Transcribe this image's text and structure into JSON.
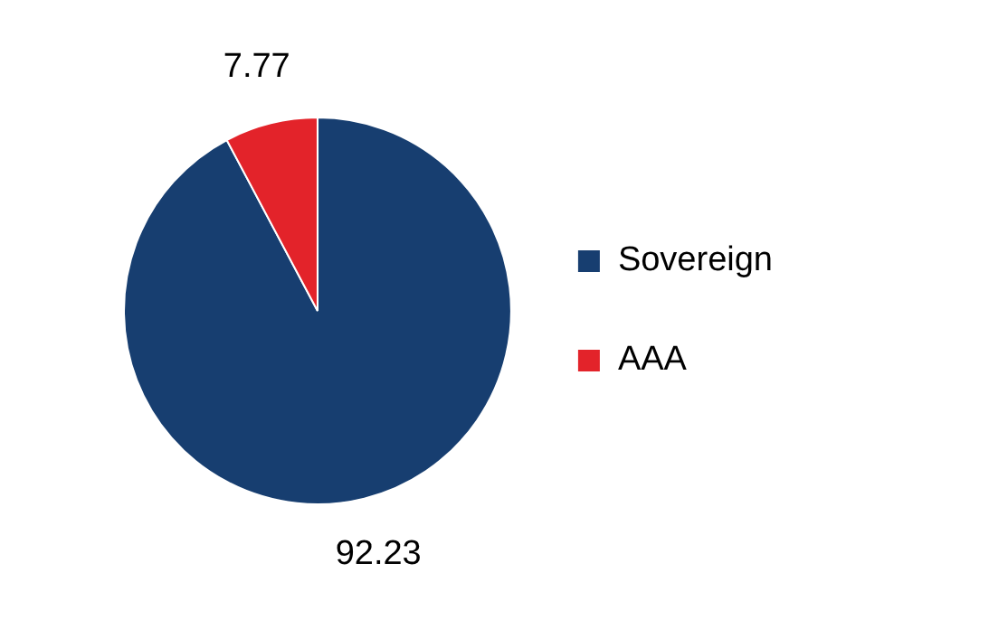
{
  "chart_data": {
    "type": "pie",
    "categories": [
      "Sovereign",
      "AAA"
    ],
    "values": [
      92.23,
      7.77
    ],
    "colors": [
      "#173e70",
      "#e3232a"
    ],
    "data_labels": true,
    "legend": "right"
  }
}
